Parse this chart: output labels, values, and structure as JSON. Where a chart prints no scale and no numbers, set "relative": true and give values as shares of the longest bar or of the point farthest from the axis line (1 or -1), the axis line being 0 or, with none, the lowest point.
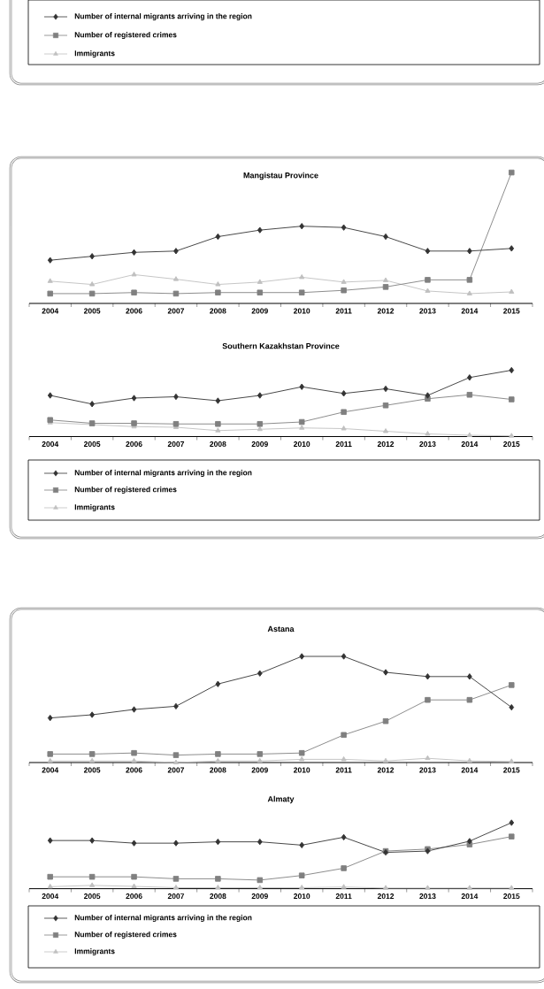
{
  "chart_data": [
    {
      "type": "other",
      "legend": "bottom",
      "series": [
        {
          "name": "Number of internal migrants arriving in the region",
          "color": "#333333",
          "marker": "diamond"
        },
        {
          "name": "Number of registered crimes",
          "color": "#808080",
          "marker": "square"
        },
        {
          "name": "Immigrants",
          "color": "#c0c0c0",
          "marker": "triangle"
        }
      ]
    },
    {
      "type": "line",
      "title": "Mangistau Province",
      "relative": true,
      "categories": [
        "2004",
        "2005",
        "2006",
        "2007",
        "2008",
        "2009",
        "2010",
        "2011",
        "2012",
        "2013",
        "2014",
        "2015"
      ],
      "series": [
        {
          "color": "#333333",
          "marker": "diamond",
          "values": [
            0.33,
            0.36,
            0.39,
            0.4,
            0.51,
            0.56,
            0.59,
            0.58,
            0.51,
            0.4,
            0.4,
            0.42
          ]
        },
        {
          "color": "#808080",
          "marker": "square",
          "values": [
            0.075,
            0.075,
            0.083,
            0.075,
            0.083,
            0.083,
            0.083,
            0.1,
            0.126,
            0.18,
            0.18,
            1
          ]
        },
        {
          "color": "#c0c0c0",
          "marker": "triangle",
          "values": [
            0.17,
            0.145,
            0.22,
            0.185,
            0.145,
            0.163,
            0.2,
            0.163,
            0.176,
            0.095,
            0.075,
            0.088
          ]
        }
      ]
    },
    {
      "type": "line",
      "title": "Southern Kazakhstan Province",
      "relative": true,
      "legend": "bottom",
      "categories": [
        "2004",
        "2005",
        "2006",
        "2007",
        "2008",
        "2009",
        "2010",
        "2011",
        "2012",
        "2013",
        "2014",
        "2015"
      ],
      "series": [
        {
          "name": "Number of internal migrants arriving in the region",
          "color": "#333333",
          "marker": "diamond",
          "values": [
            0.62,
            0.49,
            0.58,
            0.6,
            0.54,
            0.62,
            0.75,
            0.65,
            0.72,
            0.62,
            0.89,
            1
          ]
        },
        {
          "name": "Number of registered crimes",
          "color": "#808080",
          "marker": "square",
          "values": [
            0.25,
            0.2,
            0.2,
            0.19,
            0.19,
            0.19,
            0.22,
            0.37,
            0.47,
            0.57,
            0.63,
            0.56
          ]
        },
        {
          "name": "Immigrants",
          "color": "#c0c0c0",
          "marker": "triangle",
          "values": [
            0.21,
            0.18,
            0.15,
            0.14,
            0.09,
            0.11,
            0.13,
            0.12,
            0.08,
            0.04,
            0.02,
            0.01
          ]
        }
      ]
    },
    {
      "type": "line",
      "title": "Astana",
      "relative": true,
      "categories": [
        "2004",
        "2005",
        "2006",
        "2007",
        "2008",
        "2009",
        "2010",
        "2011",
        "2012",
        "2013",
        "2014",
        "2015"
      ],
      "series": [
        {
          "color": "#333333",
          "marker": "diamond",
          "values": [
            0.42,
            0.45,
            0.5,
            0.53,
            0.74,
            0.84,
            1,
            1,
            0.85,
            0.81,
            0.81,
            0.52
          ]
        },
        {
          "color": "#808080",
          "marker": "square",
          "values": [
            0.08,
            0.08,
            0.09,
            0.07,
            0.08,
            0.08,
            0.09,
            0.26,
            0.39,
            0.59,
            0.59,
            0.73
          ]
        },
        {
          "color": "#c0c0c0",
          "marker": "triangle",
          "values": [
            0.015,
            0.015,
            0.015,
            0,
            0.015,
            0.015,
            0.03,
            0.03,
            0.015,
            0.04,
            0.015,
            0.01
          ]
        }
      ]
    },
    {
      "type": "line",
      "title": "Almaty",
      "relative": true,
      "legend": "bottom",
      "categories": [
        "2004",
        "2005",
        "2006",
        "2007",
        "2008",
        "2009",
        "2010",
        "2011",
        "2012",
        "2013",
        "2014",
        "2015"
      ],
      "series": [
        {
          "name": "Number of internal migrants arriving in the region",
          "color": "#333333",
          "marker": "diamond",
          "values": [
            0.73,
            0.73,
            0.69,
            0.69,
            0.71,
            0.71,
            0.66,
            0.78,
            0.55,
            0.57,
            0.72,
            1
          ]
        },
        {
          "name": "Number of registered crimes",
          "color": "#808080",
          "marker": "square",
          "values": [
            0.18,
            0.18,
            0.18,
            0.15,
            0.15,
            0.13,
            0.2,
            0.31,
            0.57,
            0.6,
            0.67,
            0.79
          ]
        },
        {
          "name": "Immigrants",
          "color": "#c0c0c0",
          "marker": "triangle",
          "values": [
            0.03,
            0.05,
            0.035,
            0.015,
            0.015,
            0.015,
            0.015,
            0.025,
            0.01,
            0.01,
            0.01,
            0.01
          ]
        }
      ]
    }
  ]
}
